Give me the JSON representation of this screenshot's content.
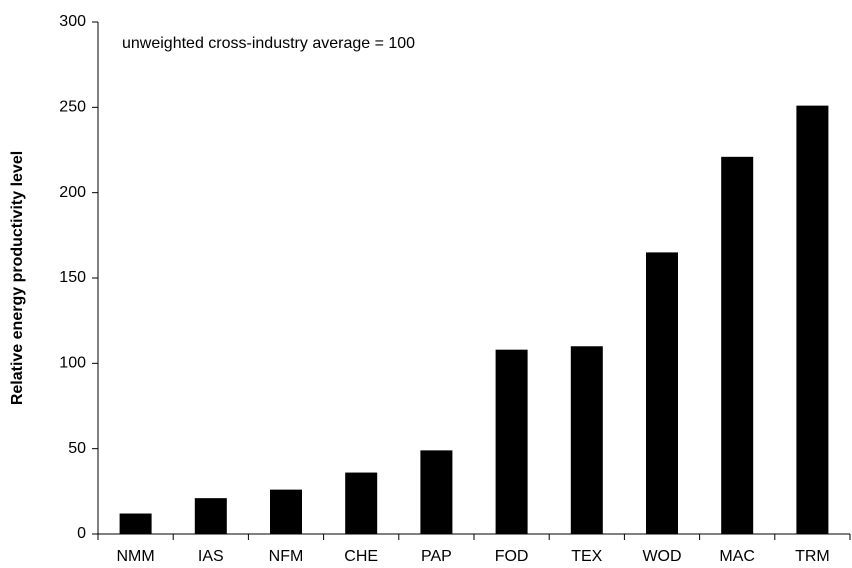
{
  "chart_data": {
    "type": "bar",
    "y_label": "Relative energy productivity level",
    "annotation": "unweighted cross-industry average = 100",
    "categories": [
      "NMM",
      "IAS",
      "NFM",
      "CHE",
      "PAP",
      "FOD",
      "TEX",
      "WOD",
      "MAC",
      "TRM"
    ],
    "values": [
      12,
      21,
      26,
      36,
      49,
      108,
      110,
      165,
      221,
      251
    ],
    "color": "#000000",
    "ylim": [
      0,
      300
    ],
    "yticks": [
      0,
      50,
      100,
      150,
      200,
      250,
      300
    ],
    "grid": false
  }
}
